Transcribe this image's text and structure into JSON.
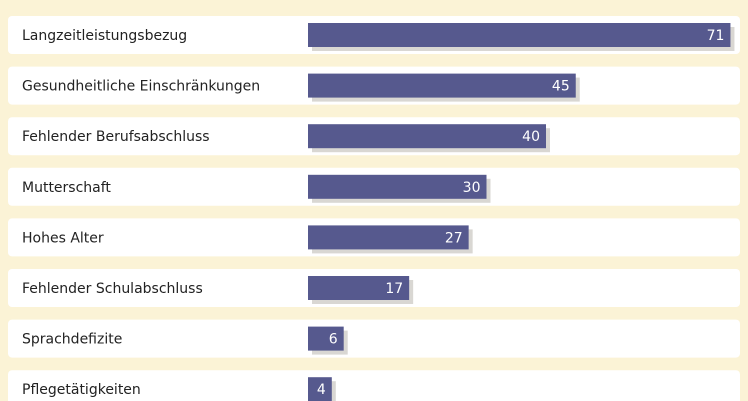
{
  "chart_data": {
    "type": "bar",
    "orientation": "horizontal",
    "categories": [
      "Langzeitleistungsbezug",
      "Gesundheitliche Einschränkungen",
      "Fehlender Berufsabschluss",
      "Mutterschaft",
      "Hohes Alter",
      "Fehlender Schulabschluss",
      "Sprachdefizite",
      "Pflegetätigkeiten"
    ],
    "values": [
      71,
      45,
      40,
      30,
      27,
      17,
      6,
      4
    ],
    "color": "#56598e"
  }
}
